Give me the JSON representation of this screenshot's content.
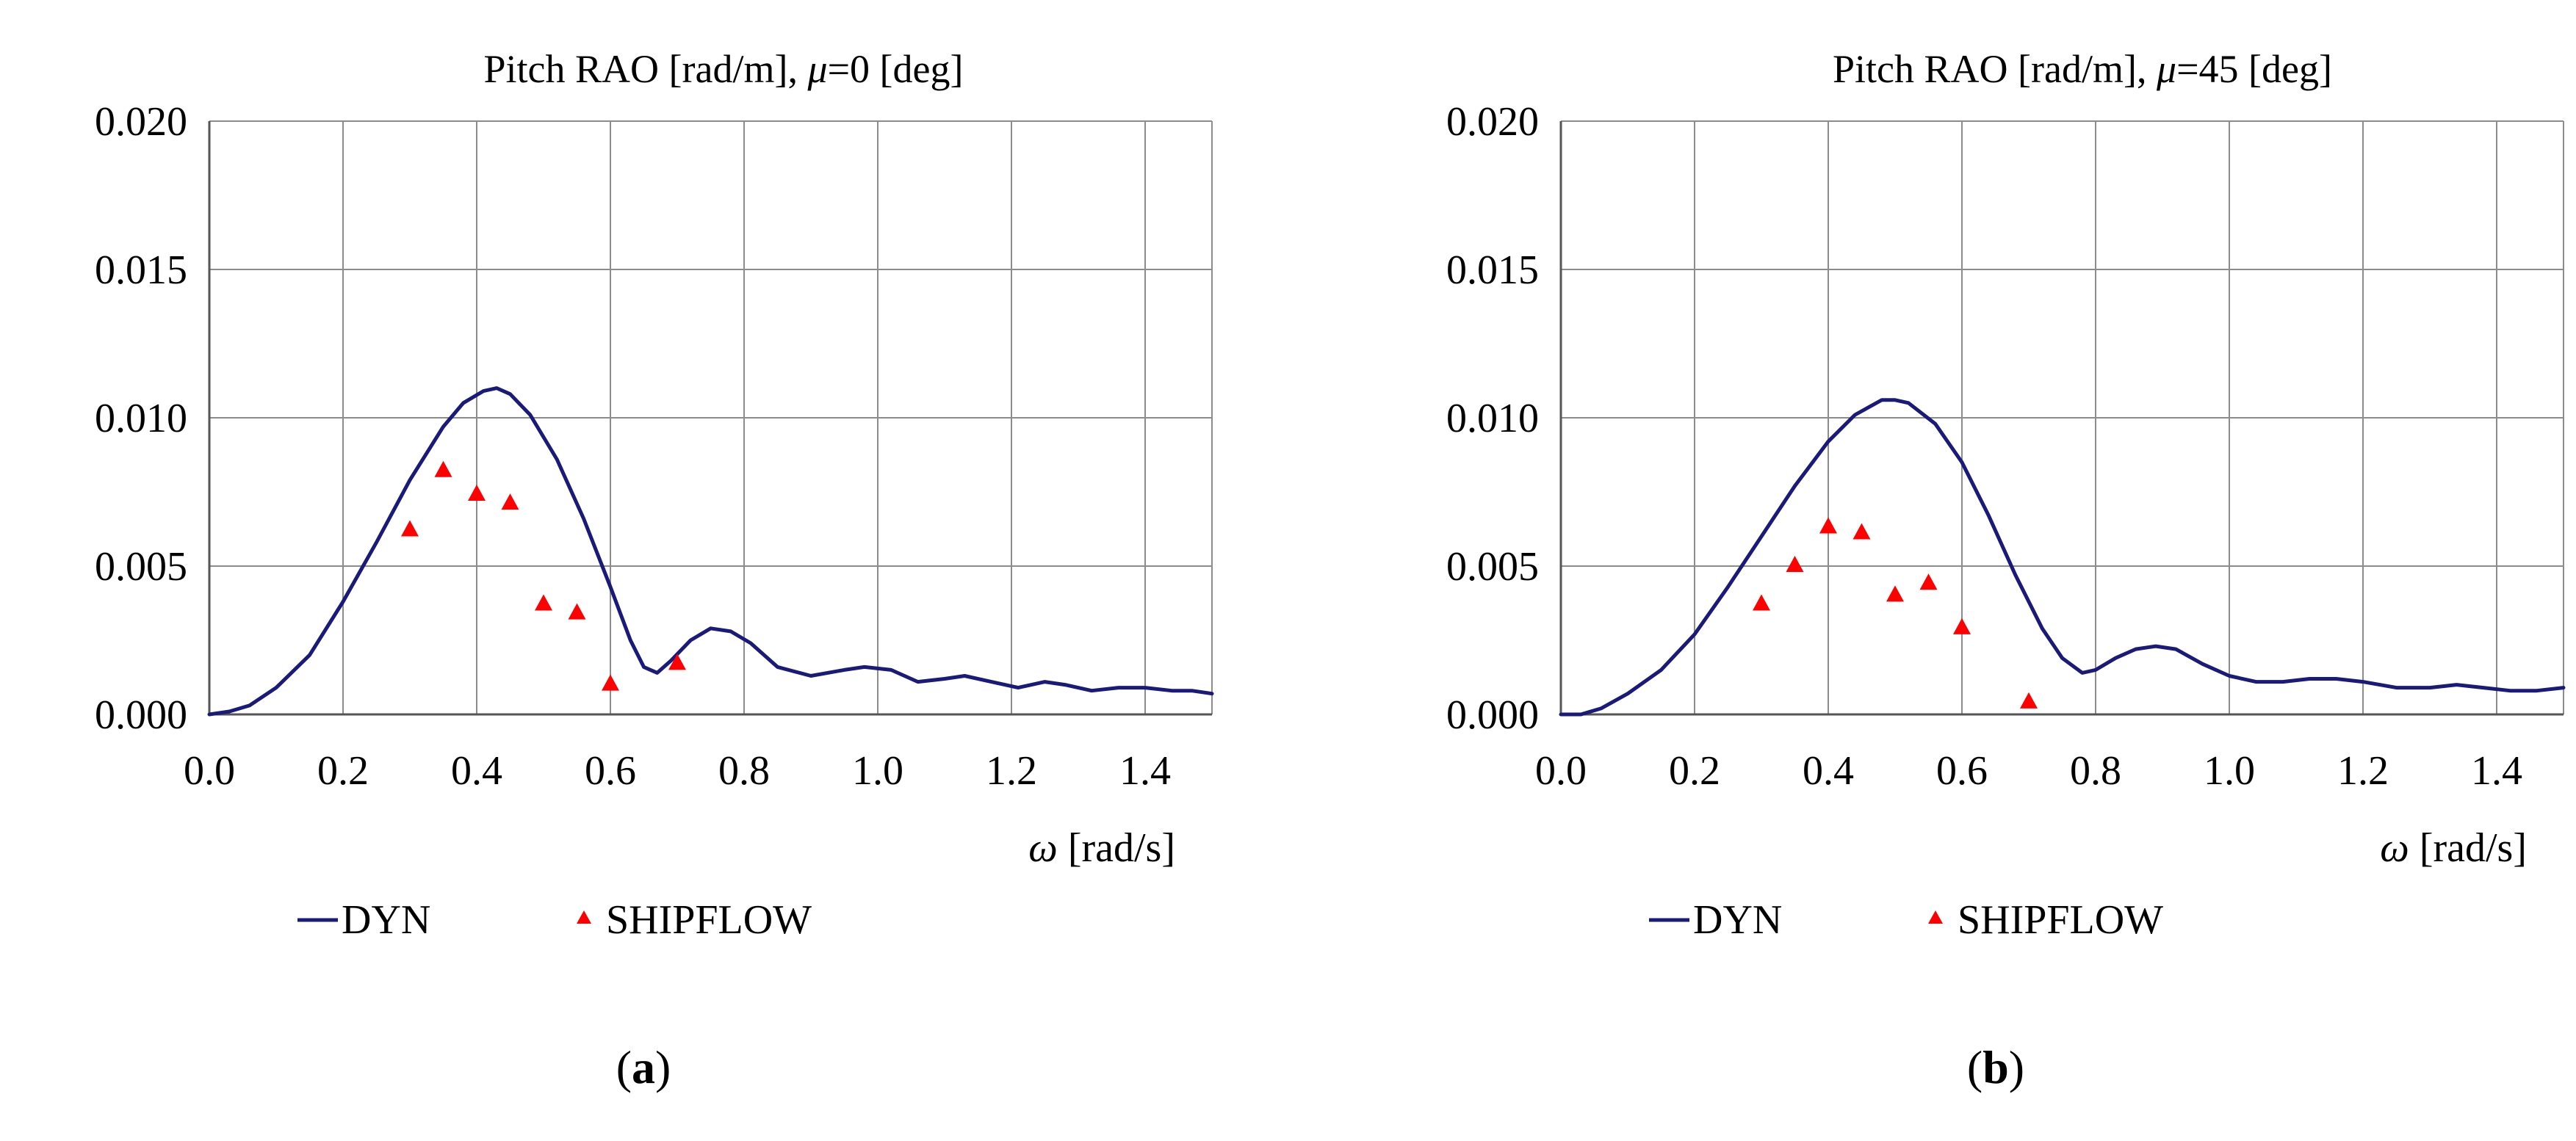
{
  "chart_data": [
    {
      "type": "line",
      "title_prefix": "Pitch RAO [rad/m], ",
      "title_symbol": "μ",
      "title_suffix": "=0 [deg]",
      "xlabel_symbol": "ω",
      "xlabel_unit": " [rad/s]",
      "ylabel": "",
      "xlim": [
        0,
        1.5
      ],
      "ylim": [
        0,
        0.02
      ],
      "xticks": [
        "0.0",
        "0.2",
        "0.4",
        "0.6",
        "0.8",
        "1.0",
        "1.2",
        "1.4"
      ],
      "yticks": [
        "0.000",
        "0.005",
        "0.010",
        "0.015",
        "0.020"
      ],
      "grid": true,
      "legend_position": "bottom",
      "caption_letter": "a",
      "series": [
        {
          "name": "DYN",
          "kind": "line",
          "color": "#1a1a7a",
          "x": [
            0.0,
            0.03,
            0.06,
            0.1,
            0.15,
            0.2,
            0.25,
            0.3,
            0.35,
            0.38,
            0.41,
            0.43,
            0.45,
            0.48,
            0.52,
            0.56,
            0.6,
            0.63,
            0.65,
            0.67,
            0.69,
            0.72,
            0.75,
            0.78,
            0.81,
            0.85,
            0.9,
            0.95,
            0.98,
            1.02,
            1.06,
            1.1,
            1.13,
            1.17,
            1.21,
            1.25,
            1.28,
            1.32,
            1.36,
            1.4,
            1.44,
            1.47,
            1.5
          ],
          "y": [
            0.0,
            0.0001,
            0.0003,
            0.0009,
            0.002,
            0.0038,
            0.0058,
            0.0079,
            0.0097,
            0.0105,
            0.0109,
            0.011,
            0.0108,
            0.0101,
            0.0086,
            0.0066,
            0.0043,
            0.0025,
            0.0016,
            0.0014,
            0.0018,
            0.0025,
            0.0029,
            0.0028,
            0.0024,
            0.0016,
            0.0013,
            0.0015,
            0.0016,
            0.0015,
            0.0011,
            0.0012,
            0.0013,
            0.0011,
            0.0009,
            0.0011,
            0.001,
            0.0008,
            0.0009,
            0.0009,
            0.0008,
            0.0008,
            0.0007
          ]
        },
        {
          "name": "SHIPFLOW",
          "kind": "scatter",
          "color": "#ff0000",
          "x": [
            0.3,
            0.35,
            0.4,
            0.45,
            0.5,
            0.55,
            0.6,
            0.7
          ],
          "y": [
            0.0062,
            0.0082,
            0.0074,
            0.0071,
            0.0037,
            0.0034,
            0.001,
            0.0017
          ]
        }
      ]
    },
    {
      "type": "line",
      "title_prefix": "Pitch RAO [rad/m], ",
      "title_symbol": "μ",
      "title_suffix": "=45 [deg]",
      "xlabel_symbol": "ω",
      "xlabel_unit": " [rad/s]",
      "ylabel": "",
      "xlim": [
        0,
        1.5
      ],
      "ylim": [
        0,
        0.02
      ],
      "xticks": [
        "0.0",
        "0.2",
        "0.4",
        "0.6",
        "0.8",
        "1.0",
        "1.2",
        "1.4"
      ],
      "yticks": [
        "0.000",
        "0.005",
        "0.010",
        "0.015",
        "0.020"
      ],
      "grid": true,
      "legend_position": "bottom",
      "caption_letter": "b",
      "series": [
        {
          "name": "DYN",
          "kind": "line",
          "color": "#1a1a7a",
          "x": [
            0.0,
            0.03,
            0.06,
            0.1,
            0.15,
            0.2,
            0.25,
            0.3,
            0.35,
            0.4,
            0.44,
            0.48,
            0.5,
            0.52,
            0.56,
            0.6,
            0.64,
            0.68,
            0.72,
            0.75,
            0.78,
            0.8,
            0.83,
            0.86,
            0.89,
            0.92,
            0.96,
            1.0,
            1.04,
            1.08,
            1.12,
            1.16,
            1.2,
            1.25,
            1.3,
            1.34,
            1.38,
            1.42,
            1.46,
            1.5
          ],
          "y": [
            0.0,
            0.0,
            0.0002,
            0.0007,
            0.0015,
            0.0027,
            0.0043,
            0.006,
            0.0077,
            0.0092,
            0.0101,
            0.0106,
            0.0106,
            0.0105,
            0.0098,
            0.0085,
            0.0067,
            0.0047,
            0.0029,
            0.0019,
            0.0014,
            0.0015,
            0.0019,
            0.0022,
            0.0023,
            0.0022,
            0.0017,
            0.0013,
            0.0011,
            0.0011,
            0.0012,
            0.0012,
            0.0011,
            0.0009,
            0.0009,
            0.001,
            0.0009,
            0.0008,
            0.0008,
            0.0009
          ]
        },
        {
          "name": "SHIPFLOW",
          "kind": "scatter",
          "color": "#ff0000",
          "x": [
            0.3,
            0.35,
            0.4,
            0.45,
            0.5,
            0.55,
            0.6,
            0.7
          ],
          "y": [
            0.0037,
            0.005,
            0.0063,
            0.0061,
            0.004,
            0.0044,
            0.0029,
            0.0004
          ]
        }
      ]
    }
  ]
}
